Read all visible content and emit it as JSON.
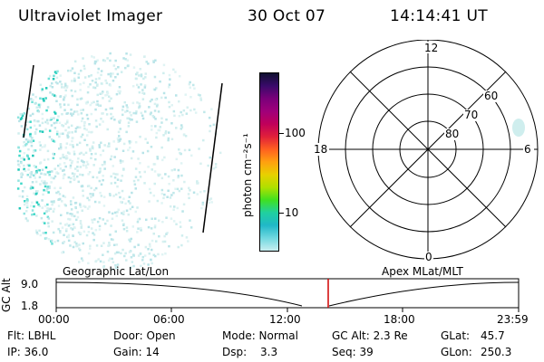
{
  "header": {
    "instrument": "Ultraviolet Imager",
    "date": "30 Oct 07",
    "time": "14:14:41 UT"
  },
  "colorbar": {
    "unit_label": "photon cm⁻²s⁻¹",
    "ticks": [
      "100",
      "10"
    ],
    "colors": [
      "#101030",
      "#3a0a6a",
      "#7a007a",
      "#a0007a",
      "#c0005a",
      "#e0203a",
      "#ff6020",
      "#ffa010",
      "#e8d000",
      "#b0e000",
      "#40e020",
      "#20d0a0",
      "#20b8c8",
      "#70d8e0",
      "#c8eef0"
    ]
  },
  "polar_plot": {
    "mlt_labels": [
      "12",
      "18",
      "6",
      "0"
    ],
    "lat_labels": [
      "60",
      "70",
      "80"
    ]
  },
  "timeline": {
    "y_axis_label": "GC Alt",
    "y_ticks": [
      "9.0",
      "1.8"
    ],
    "left_caption": "Geographic Lat/Lon",
    "right_caption": "Apex MLat/MLT",
    "x_ticks": [
      "00:00",
      "06:00",
      "12:00",
      "18:00",
      "23:59"
    ],
    "current_marker_color": "#d00000"
  },
  "status": {
    "flt": "Flt: LBHL",
    "ip": "IP: 36.0",
    "door": "Door: Open",
    "gain": "Gain: 14",
    "mode": "Mode: Normal",
    "dsp_label": "Dsp:",
    "dsp_value": "3.3",
    "gc_alt": "GC Alt: 2.3 Re",
    "seq": "Seq: 39",
    "glat_label": "GLat:",
    "glat_value": "45.7",
    "glon_label": "GLon:",
    "glon_value": "250.3"
  }
}
